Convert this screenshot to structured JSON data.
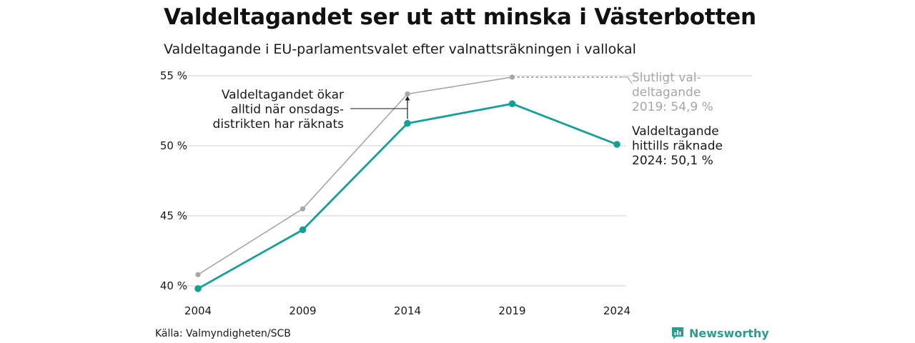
{
  "header": {
    "title": "Valdeltagandet ser ut att minska i Västerbotten",
    "subtitle": "Valdeltagande i EU-parlamentsvalet efter valnattsräkningen i vallokal"
  },
  "footer": {
    "source": "Källa: Valmyndigheten/SCB",
    "brand": "Newsworthy"
  },
  "colors": {
    "election_night": "#14a097",
    "final": "#a6a6a6",
    "grid": "#e0e0e0"
  },
  "chart_data": {
    "type": "line",
    "x": [
      2004,
      2009,
      2014,
      2019,
      2024
    ],
    "ylim": [
      40,
      55
    ],
    "yticks": [
      40,
      45,
      50,
      55
    ],
    "ytick_labels": [
      "40 %",
      "45 %",
      "50 %",
      "55 %"
    ],
    "xtick_labels": [
      "2004",
      "2009",
      "2014",
      "2019",
      "2024"
    ],
    "grid": true,
    "series": [
      {
        "key": "final",
        "values": [
          40.8,
          45.5,
          53.7,
          54.9,
          null
        ]
      },
      {
        "key": "election_night",
        "values": [
          39.8,
          44.0,
          51.6,
          53.0,
          50.1
        ]
      }
    ],
    "annotations": {
      "final_label": [
        "Slutligt val-",
        "deltagande",
        "2019: 54,9 %"
      ],
      "current_label": [
        "Valdeltagande",
        "hittills räknade",
        "2024: 50,1 %"
      ],
      "increase_note": [
        "Valdeltagandet ökar",
        "alltid när onsdags-",
        "distrikten har räknats"
      ]
    }
  }
}
